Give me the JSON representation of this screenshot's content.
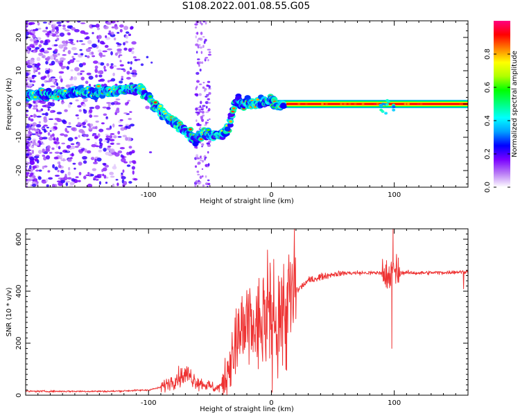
{
  "title": "S108.2022.001.08.55.G05",
  "chart_data": [
    {
      "type": "heatmap",
      "xlabel": "Height of straight line (km)",
      "ylabel": "Frequency (Hz)",
      "xlim": [
        -200,
        160
      ],
      "ylim": [
        -25,
        25
      ],
      "xticks": [
        -100,
        0,
        100
      ],
      "yticks": [
        -20,
        -10,
        0,
        10,
        20
      ],
      "colorbar": {
        "label": "Normalized spectral amplitude",
        "range": [
          0,
          1
        ],
        "ticks": [
          "0.0",
          "0.2",
          "0.4",
          "0.6",
          "0.8"
        ],
        "colors": [
          "#ffffff",
          "#b97cf5",
          "#7a00ff",
          "#0000ff",
          "#00a0ff",
          "#00ffff",
          "#00ff80",
          "#00ff00",
          "#b0ff00",
          "#ffff00",
          "#ff8000",
          "#ff0000",
          "#ff0080"
        ]
      },
      "ridge": {
        "x": [
          -198,
          -185,
          -170,
          -155,
          -140,
          -125,
          -115,
          -105,
          -98,
          -90,
          -80,
          -70,
          -62,
          -55,
          -48,
          -40,
          -35,
          -32,
          -30,
          -27,
          -25,
          -20,
          -10,
          0,
          5,
          10,
          50,
          100,
          160
        ],
        "y": [
          2.5,
          3,
          3,
          3.5,
          3.5,
          4,
          4.5,
          4,
          1,
          -2,
          -5.5,
          -8,
          -11,
          -8.5,
          -9.5,
          -9,
          -7.5,
          -3,
          0.5,
          1.5,
          0,
          0.2,
          0.3,
          1.2,
          0,
          0,
          0,
          0,
          0
        ]
      },
      "tone": {
        "y": 0,
        "x_range": [
          0,
          160
        ],
        "value": 1.0
      }
    },
    {
      "type": "line",
      "xlabel": "Height of straight line (km)",
      "ylabel": "SNR (10 * v/v)",
      "xlim": [
        -200,
        160
      ],
      "ylim": [
        0,
        640
      ],
      "xticks": [
        -100,
        0,
        100
      ],
      "yticks": [
        0,
        200,
        400,
        600
      ],
      "series": [
        {
          "color": "#ee3333",
          "trend": {
            "x": [
              -200,
              -130,
              -100,
              -90,
              -75,
              -68,
              -60,
              -50,
              -45,
              -40,
              -35,
              -30,
              -25,
              -20,
              -15,
              -10,
              -5,
              0,
              10,
              20,
              30,
              40,
              50,
              60,
              80,
              100,
              120,
              140,
              160
            ],
            "y": [
              15,
              15,
              20,
              30,
              70,
              80,
              50,
              35,
              25,
              40,
              110,
              170,
              230,
              250,
              260,
              260,
              280,
              300,
              320,
              400,
              440,
              455,
              465,
              470,
              470,
              472,
              470,
              472,
              475
            ]
          },
          "features": [
            {
              "x": 98,
              "y": 180
            },
            {
              "x": 99,
              "y": 640
            }
          ]
        }
      ]
    }
  ]
}
